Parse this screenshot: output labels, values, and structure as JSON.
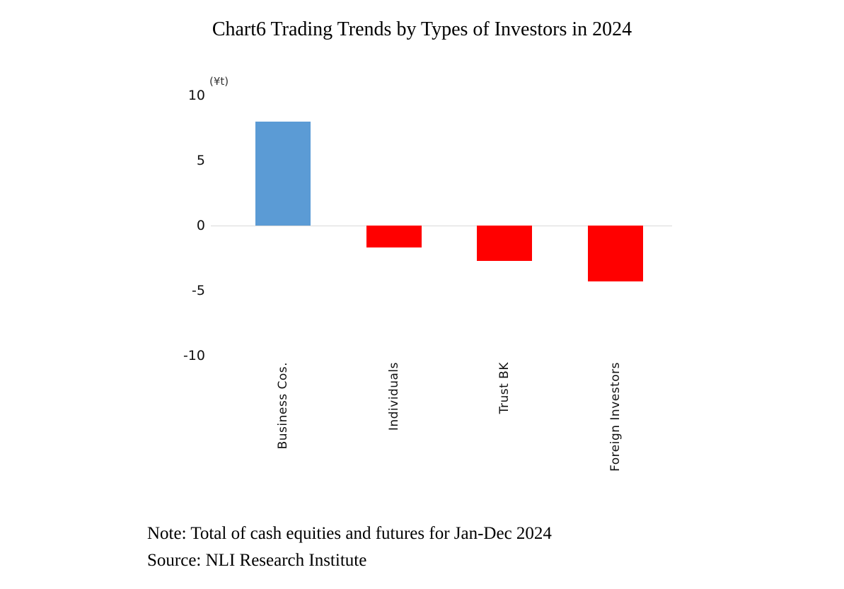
{
  "title": "Chart6 Trading Trends by Types of Investors in 2024",
  "chart_data": {
    "type": "bar",
    "title": "Chart6 Trading Trends by Types of Investors in 2024",
    "unit_label": "(¥t)",
    "categories": [
      "Business Cos.",
      "Individuals",
      "Trust BK",
      "Foreign Investors"
    ],
    "values": [
      8.0,
      -1.7,
      -2.7,
      -4.3
    ],
    "bar_colors": [
      "#5B9BD5",
      "#FF0000",
      "#FF0000",
      "#FF0000"
    ],
    "y_ticks": [
      10,
      5,
      0,
      -5,
      -10
    ],
    "ylim": [
      -10,
      10
    ],
    "grid": "zero-line-only",
    "legend": "none",
    "colors": {
      "positive_bar": "#5B9BD5",
      "negative_bar": "#FF0000",
      "zero_line": "#D9D9D9"
    }
  },
  "notes": {
    "note": "Note: Total of cash equities and futures for Jan-Dec 2024",
    "source": "Source: NLI Research Institute"
  }
}
